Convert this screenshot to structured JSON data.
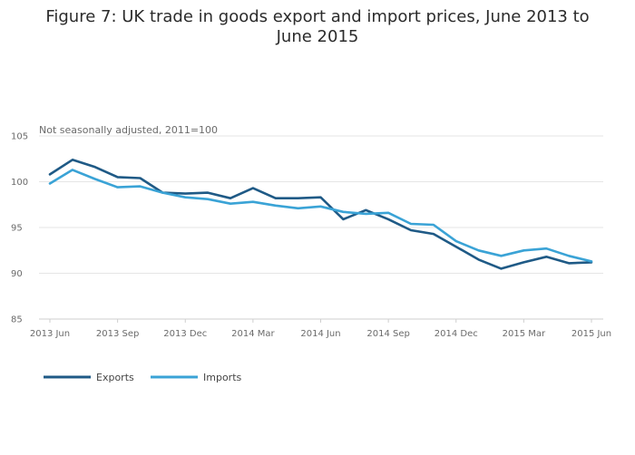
{
  "chart_data": {
    "type": "line",
    "title": "Figure 7: UK trade in goods export and import prices, June 2013 to June 2015",
    "subtitle": "Not seasonally adjusted, 2011=100",
    "xlabel": "",
    "ylabel": "",
    "ylim": [
      85,
      105
    ],
    "yticks": [
      85,
      90,
      95,
      100,
      105
    ],
    "grid": true,
    "legend_position": "bottom-left",
    "x": [
      "2013 Jun",
      "2013 Jul",
      "2013 Aug",
      "2013 Sep",
      "2013 Oct",
      "2013 Nov",
      "2013 Dec",
      "2014 Jan",
      "2014 Feb",
      "2014 Mar",
      "2014 Apr",
      "2014 May",
      "2014 Jun",
      "2014 Jul",
      "2014 Aug",
      "2014 Sep",
      "2014 Oct",
      "2014 Nov",
      "2014 Dec",
      "2015 Jan",
      "2015 Feb",
      "2015 Mar",
      "2015 Apr",
      "2015 May",
      "2015 Jun"
    ],
    "x_tick_labels": [
      {
        "index": 0,
        "label": "2013 Jun"
      },
      {
        "index": 3,
        "label": "2013 Sep"
      },
      {
        "index": 6,
        "label": "2013 Dec"
      },
      {
        "index": 9,
        "label": "2014 Mar"
      },
      {
        "index": 12,
        "label": "2014 Jun"
      },
      {
        "index": 15,
        "label": "2014 Sep"
      },
      {
        "index": 18,
        "label": "2014 Dec"
      },
      {
        "index": 21,
        "label": "2015 Mar"
      },
      {
        "index": 24,
        "label": "2015 Jun"
      }
    ],
    "series": [
      {
        "name": "Exports",
        "color": "#1f5a86",
        "values": [
          100.8,
          102.4,
          101.6,
          100.5,
          100.4,
          98.8,
          98.7,
          98.8,
          98.2,
          99.3,
          98.2,
          98.2,
          98.3,
          95.9,
          96.9,
          95.9,
          94.7,
          94.3,
          92.9,
          91.5,
          90.5,
          91.2,
          91.8,
          91.1,
          91.2
        ]
      },
      {
        "name": "Imports",
        "color": "#3aa3d6",
        "values": [
          99.8,
          101.3,
          100.3,
          99.4,
          99.5,
          98.8,
          98.3,
          98.1,
          97.6,
          97.8,
          97.4,
          97.1,
          97.3,
          96.7,
          96.5,
          96.6,
          95.4,
          95.3,
          93.5,
          92.5,
          91.9,
          92.5,
          92.7,
          91.9,
          91.3
        ]
      }
    ]
  }
}
